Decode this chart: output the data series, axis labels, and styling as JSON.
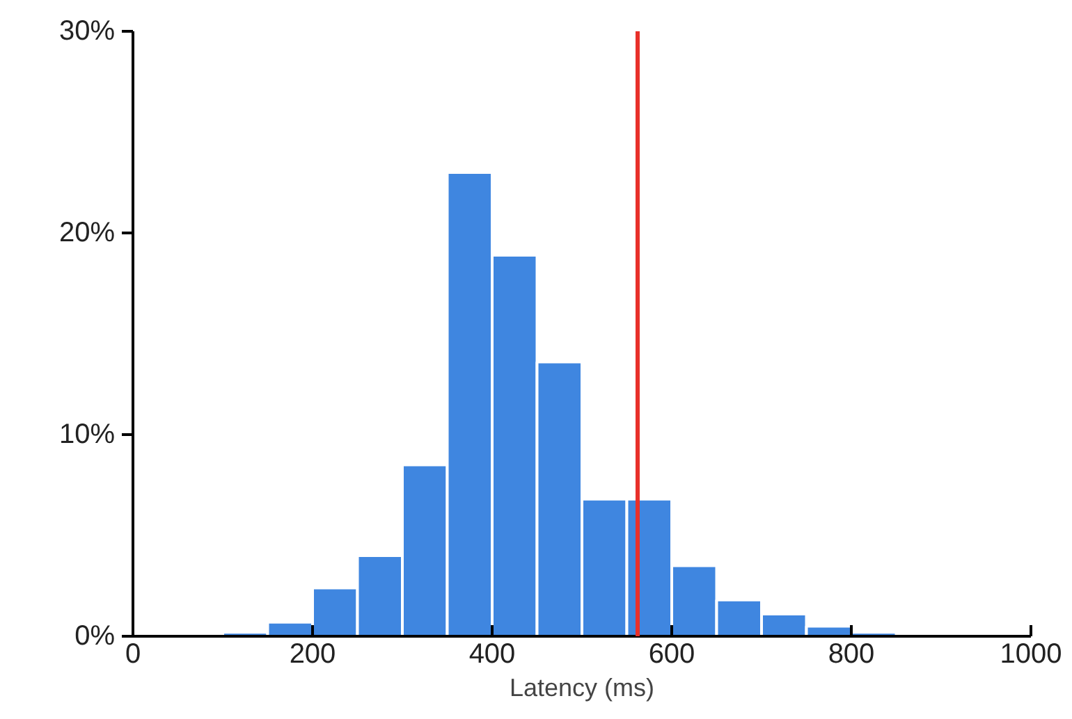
{
  "chart_data": {
    "type": "histogram",
    "xlabel": "Latency (ms)",
    "bins": [
      100,
      150,
      200,
      250,
      300,
      350,
      400,
      450,
      500,
      550,
      600,
      650,
      700,
      750,
      800,
      850
    ],
    "values": [
      0.2,
      0.7,
      2.4,
      4.0,
      8.5,
      23.0,
      18.9,
      13.6,
      6.8,
      6.8,
      3.5,
      1.8,
      1.1,
      0.5,
      0.2
    ],
    "color": "#3f86e0",
    "xlim": [
      0,
      1000
    ],
    "xticks": [
      0,
      200,
      400,
      600,
      800,
      1000
    ],
    "ylim": [
      0,
      30
    ],
    "yticks": [
      {
        "value": 0,
        "label": "0%"
      },
      {
        "value": 10,
        "label": "10%"
      },
      {
        "value": 20,
        "label": "20%"
      },
      {
        "value": 30,
        "label": "30%"
      }
    ],
    "ref_lines": [
      {
        "axis": "x",
        "value": 562,
        "label": null,
        "color": "#e8302a"
      }
    ],
    "grid": false
  }
}
